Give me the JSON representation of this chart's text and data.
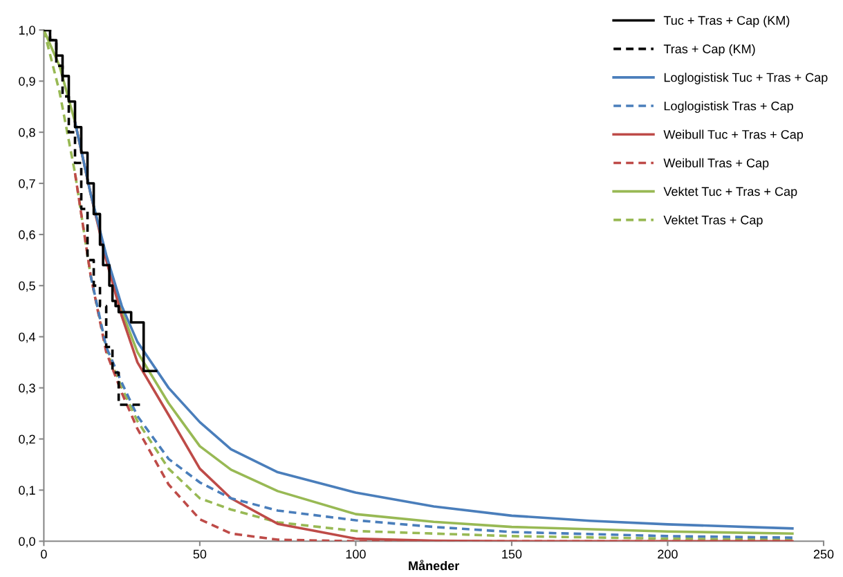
{
  "chart_data": {
    "type": "line",
    "xlabel": "Måneder",
    "xlim": [
      0,
      250
    ],
    "xticks": [
      0,
      50,
      100,
      150,
      200,
      250
    ],
    "ylim": [
      0,
      1
    ],
    "yticks": [
      {
        "value": 0,
        "label": "0,0"
      },
      {
        "value": 0.1,
        "label": "0,1"
      },
      {
        "value": 0.2,
        "label": "0,2"
      },
      {
        "value": 0.3,
        "label": "0,3"
      },
      {
        "value": 0.4,
        "label": "0,4"
      },
      {
        "value": 0.5,
        "label": "0,5"
      },
      {
        "value": 0.6,
        "label": "0,6"
      },
      {
        "value": 0.7,
        "label": "0,7"
      },
      {
        "value": 0.8,
        "label": "0,8"
      },
      {
        "value": 0.9,
        "label": "0,9"
      },
      {
        "value": 1,
        "label": "1,0"
      }
    ],
    "grid": false,
    "legend": "top right",
    "series": [
      {
        "name": "Tuc + Tras + Cap (KM)",
        "type": "step",
        "color": "#000000",
        "line_style": "solid",
        "x": [
          0,
          2,
          4,
          6,
          8,
          10,
          12,
          14,
          16,
          18,
          19,
          21,
          22,
          23,
          24,
          28,
          32,
          36
        ],
        "values": [
          1.0,
          0.98,
          0.95,
          0.91,
          0.86,
          0.81,
          0.76,
          0.7,
          0.64,
          0.58,
          0.54,
          0.5,
          0.47,
          0.46,
          0.448,
          0.428,
          0.333,
          0.333
        ]
      },
      {
        "name": "Tras + Cap (KM)",
        "type": "step",
        "color": "#000000",
        "line_style": "dashed",
        "x": [
          0,
          2,
          4,
          6,
          8,
          10,
          12,
          14,
          16,
          18,
          20,
          22,
          24,
          32
        ],
        "values": [
          1.0,
          0.98,
          0.93,
          0.87,
          0.8,
          0.74,
          0.65,
          0.55,
          0.5,
          0.46,
          0.38,
          0.33,
          0.267,
          0.267
        ]
      },
      {
        "name": "Loglogistisk Tuc + Tras + Cap",
        "color": "#4a7ebb",
        "line_style": "solid",
        "x": [
          10,
          15,
          20,
          25,
          30,
          40,
          50,
          60,
          75,
          100,
          125,
          150,
          175,
          200,
          240
        ],
        "values": [
          0.82,
          0.68,
          0.56,
          0.46,
          0.39,
          0.3,
          0.233,
          0.18,
          0.135,
          0.095,
          0.068,
          0.05,
          0.04,
          0.033,
          0.025
        ]
      },
      {
        "name": "Loglogistisk Tras + Cap",
        "color": "#4a7ebb",
        "line_style": "dashed",
        "x": [
          15,
          20,
          25,
          30,
          40,
          50,
          60,
          75,
          100,
          125,
          150,
          200,
          240
        ],
        "values": [
          0.52,
          0.38,
          0.31,
          0.245,
          0.161,
          0.115,
          0.084,
          0.06,
          0.041,
          0.028,
          0.018,
          0.01,
          0.007
        ]
      },
      {
        "name": "Weibull Tuc + Tras + Cap",
        "color": "#be4b48",
        "line_style": "solid",
        "x": [
          10,
          15,
          20,
          25,
          30,
          40,
          50,
          60,
          75,
          100,
          125,
          150,
          240
        ],
        "values": [
          0.82,
          0.68,
          0.55,
          0.44,
          0.35,
          0.247,
          0.142,
          0.084,
          0.034,
          0.005,
          0.001,
          0,
          0
        ]
      },
      {
        "name": "Weibull Tras + Cap",
        "color": "#be4b48",
        "line_style": "dashed",
        "x": [
          10,
          15,
          20,
          25,
          30,
          40,
          50,
          60,
          75,
          100,
          240
        ],
        "values": [
          0.72,
          0.52,
          0.37,
          0.29,
          0.22,
          0.111,
          0.043,
          0.015,
          0.003,
          0,
          0
        ]
      },
      {
        "name": "Vektet Tuc + Tras + Cap",
        "color": "#98b954",
        "line_style": "solid",
        "x": [
          0,
          5,
          10,
          15,
          20,
          25,
          30,
          40,
          50,
          60,
          75,
          100,
          125,
          150,
          200,
          240
        ],
        "values": [
          1.0,
          0.93,
          0.82,
          0.68,
          0.555,
          0.45,
          0.37,
          0.27,
          0.186,
          0.14,
          0.098,
          0.053,
          0.038,
          0.028,
          0.019,
          0.015
        ]
      },
      {
        "name": "Vektet Tras + Cap",
        "color": "#98b954",
        "line_style": "dashed",
        "x": [
          0,
          5,
          10,
          15,
          20,
          25,
          30,
          40,
          50,
          60,
          75,
          100,
          150,
          200,
          240
        ],
        "values": [
          1.0,
          0.88,
          0.72,
          0.52,
          0.375,
          0.3,
          0.235,
          0.142,
          0.084,
          0.062,
          0.037,
          0.02,
          0.01,
          0.005,
          0.003
        ]
      }
    ]
  }
}
